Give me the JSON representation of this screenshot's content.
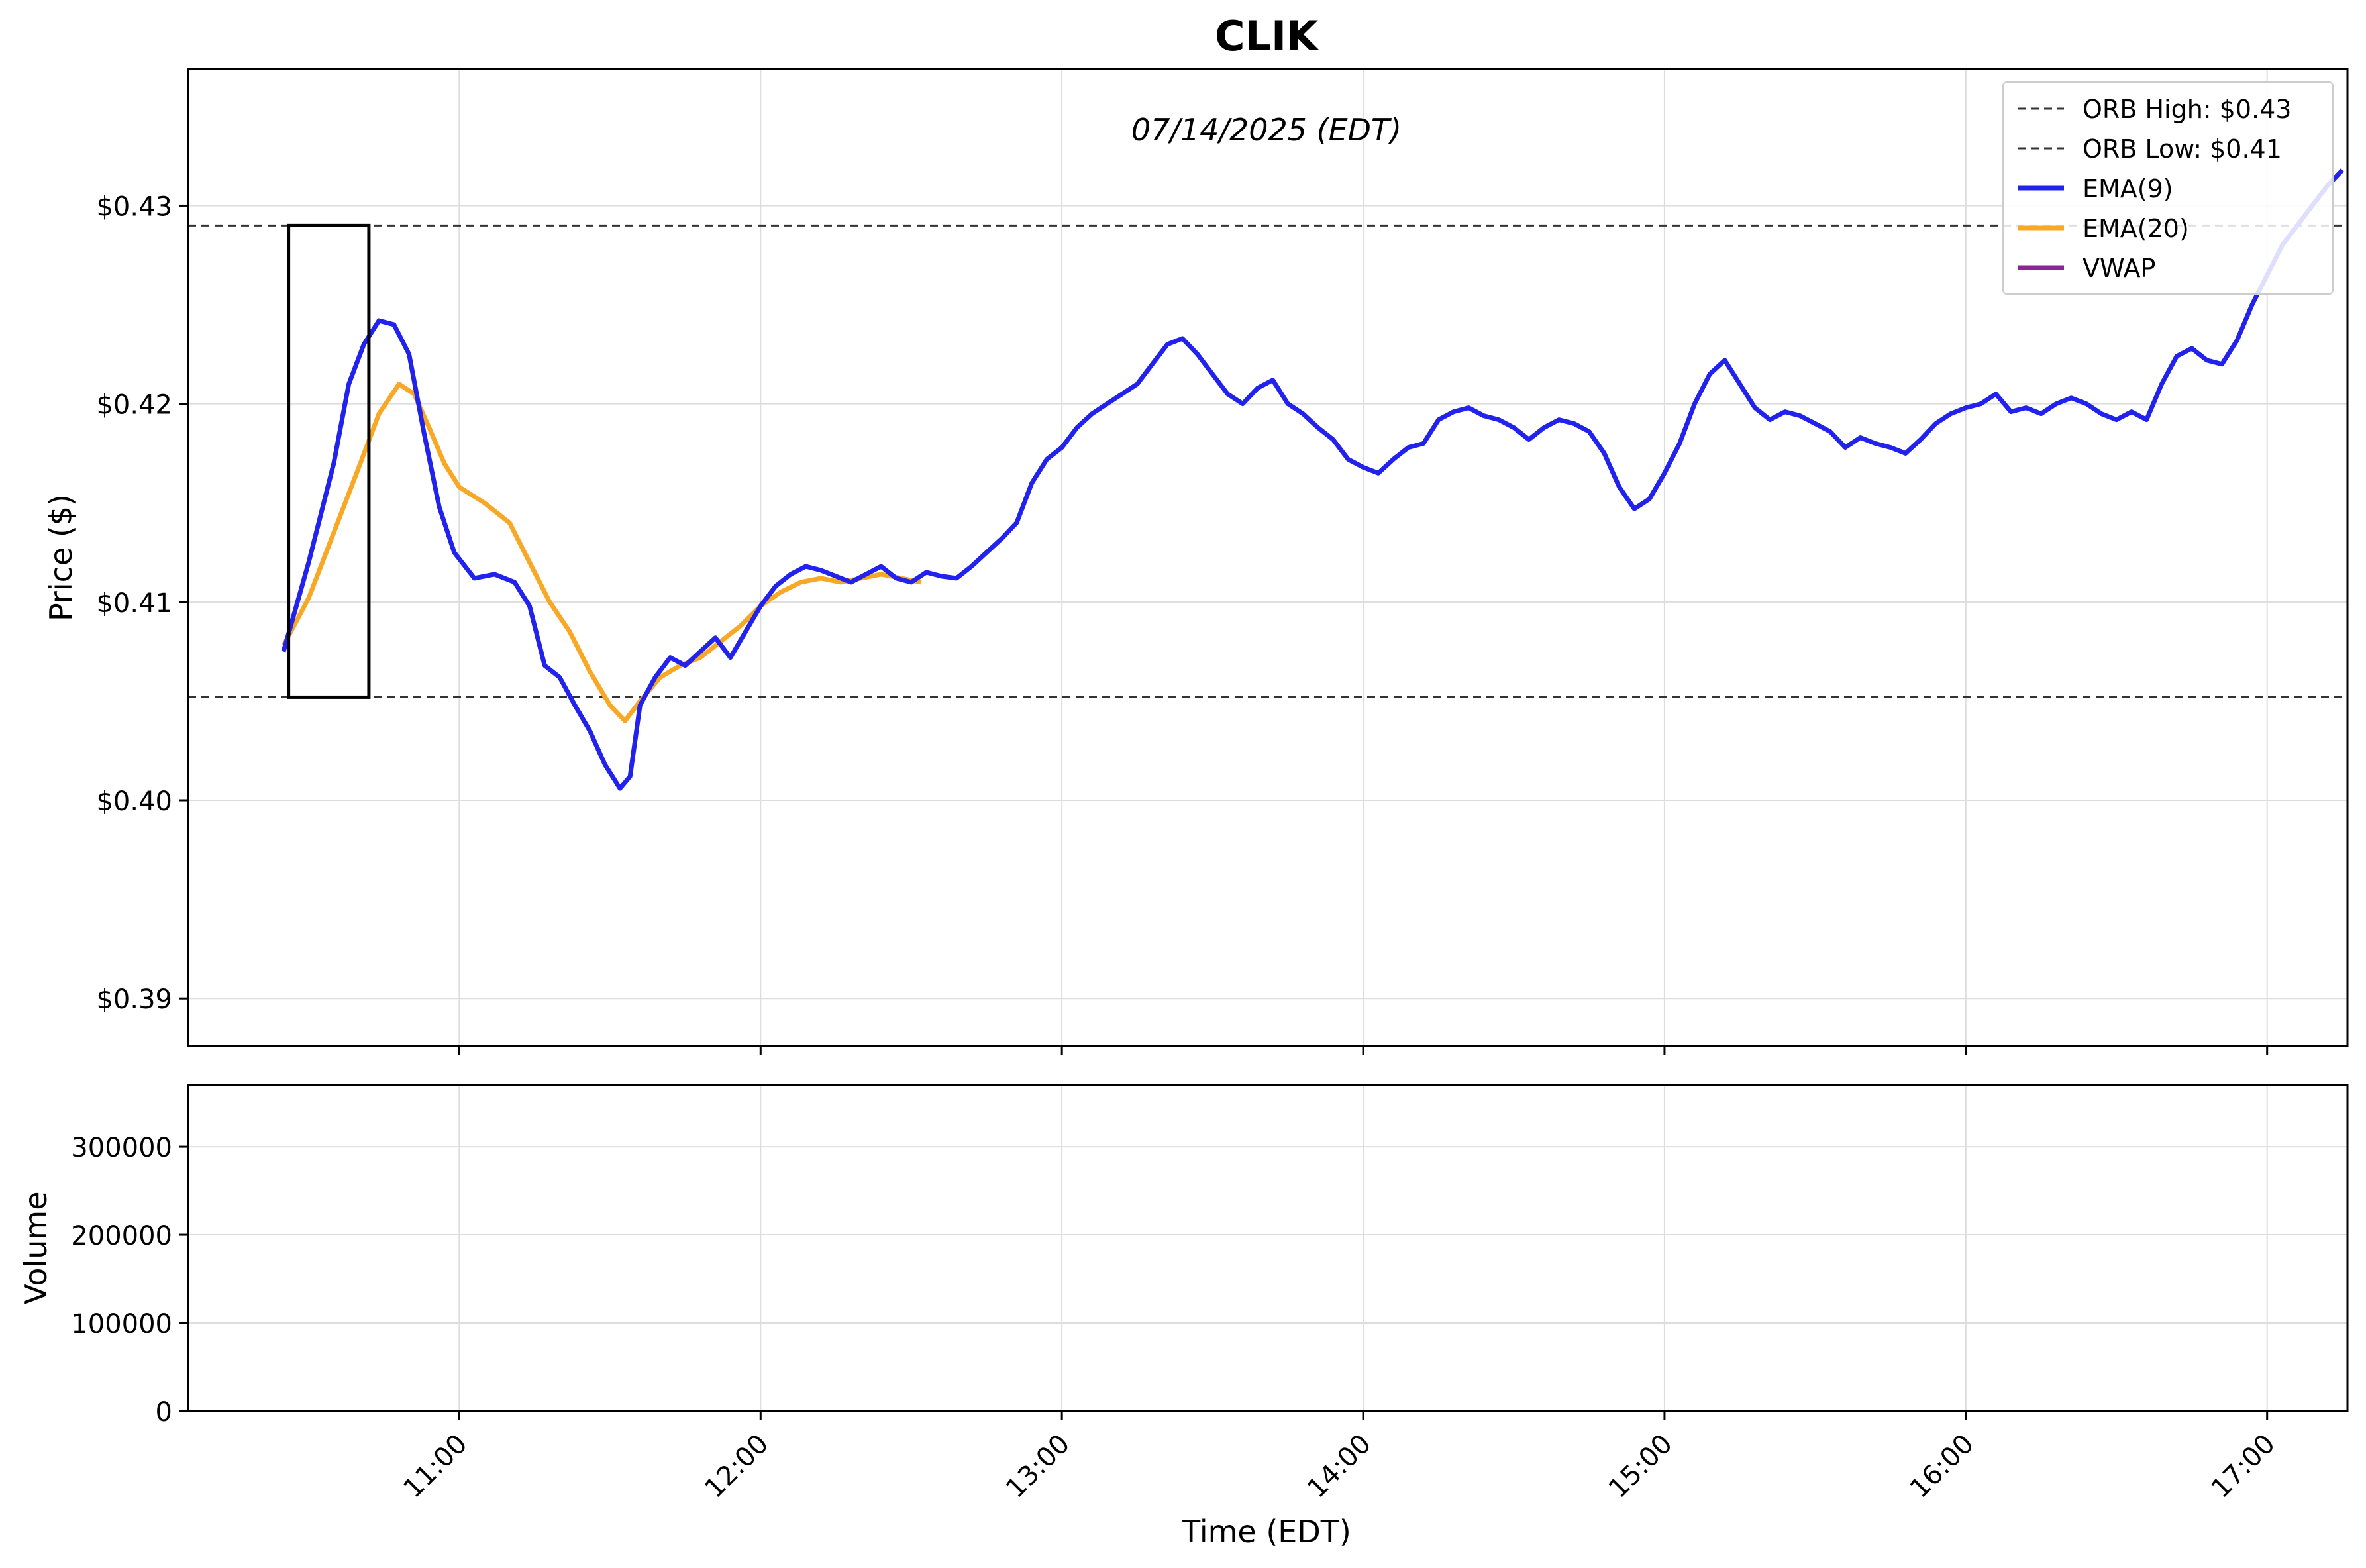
{
  "title": "CLIK",
  "date_annotation": "07/14/2025 (EDT)",
  "legend": [
    {
      "label": "ORB High: $0.43",
      "style": "dashed",
      "color": "#333333"
    },
    {
      "label": "ORB Low: $0.41",
      "style": "dashed",
      "color": "#333333"
    },
    {
      "label": "EMA(9)",
      "style": "solid",
      "color": "#2222ee"
    },
    {
      "label": "EMA(20)",
      "style": "solid",
      "color": "#f9a825"
    },
    {
      "label": "VWAP",
      "style": "solid",
      "color": "#8b2590"
    }
  ],
  "colors": {
    "up": "#007700",
    "down": "#dd0000",
    "flat": "#000000",
    "volume": "#5555ff",
    "orb_box": "#000000"
  },
  "chart_data": [
    {
      "type": "candlestick",
      "title": "CLIK",
      "annotation": "07/14/2025 (EDT)",
      "ylabel": "Price ($)",
      "ylim": [
        0.3876,
        0.4369
      ],
      "yticks": [
        0.39,
        0.4,
        0.41,
        0.42,
        0.43
      ],
      "ytick_labels": [
        "$0.39",
        "$0.40",
        "$0.41",
        "$0.42",
        "$0.43"
      ],
      "xlim": [
        "10:06",
        "17:16"
      ],
      "grid": true,
      "legend_position": "top-right",
      "orb": {
        "high": 0.429,
        "low": 0.4052,
        "start": "10:26",
        "end": "10:42"
      },
      "ema9": [
        [
          "10:25",
          0.4075
        ],
        [
          "10:30",
          0.412
        ],
        [
          "10:35",
          0.417
        ],
        [
          "10:38",
          0.421
        ],
        [
          "10:41",
          0.423
        ],
        [
          "10:44",
          0.4242
        ],
        [
          "10:47",
          0.424
        ],
        [
          "10:50",
          0.4225
        ],
        [
          "10:53",
          0.4185
        ],
        [
          "10:56",
          0.4148
        ],
        [
          "10:59",
          0.4125
        ],
        [
          "11:03",
          0.4112
        ],
        [
          "11:07",
          0.4114
        ],
        [
          "11:11",
          0.411
        ],
        [
          "11:14",
          0.4098
        ],
        [
          "11:17",
          0.4068
        ],
        [
          "11:20",
          0.4062
        ],
        [
          "11:23",
          0.4048
        ],
        [
          "11:26",
          0.4035
        ],
        [
          "11:29",
          0.4018
        ],
        [
          "11:32",
          0.4006
        ],
        [
          "11:34",
          0.4012
        ],
        [
          "11:36",
          0.4048
        ],
        [
          "11:39",
          0.4062
        ],
        [
          "11:42",
          0.4072
        ],
        [
          "11:45",
          0.4068
        ],
        [
          "11:48",
          0.4075
        ],
        [
          "11:51",
          0.4082
        ],
        [
          "11:54",
          0.4072
        ],
        [
          "11:57",
          0.4085
        ],
        [
          "12:00",
          0.4098
        ],
        [
          "12:03",
          0.4108
        ],
        [
          "12:06",
          0.4114
        ],
        [
          "12:09",
          0.4118
        ],
        [
          "12:12",
          0.4116
        ],
        [
          "12:15",
          0.4113
        ],
        [
          "12:18",
          0.411
        ],
        [
          "12:21",
          0.4114
        ],
        [
          "12:24",
          0.4118
        ],
        [
          "12:27",
          0.4112
        ],
        [
          "12:30",
          0.411
        ],
        [
          "12:33",
          0.4115
        ],
        [
          "12:36",
          0.4113
        ],
        [
          "12:39",
          0.4112
        ],
        [
          "12:42",
          0.4118
        ],
        [
          "12:45",
          0.4125
        ],
        [
          "12:48",
          0.4132
        ],
        [
          "12:51",
          0.414
        ],
        [
          "12:54",
          0.416
        ],
        [
          "12:57",
          0.4172
        ],
        [
          "13:00",
          0.4178
        ],
        [
          "13:03",
          0.4188
        ],
        [
          "13:06",
          0.4195
        ],
        [
          "13:09",
          0.42
        ],
        [
          "13:12",
          0.4205
        ],
        [
          "13:15",
          0.421
        ],
        [
          "13:18",
          0.422
        ],
        [
          "13:21",
          0.423
        ],
        [
          "13:24",
          0.4233
        ],
        [
          "13:27",
          0.4225
        ],
        [
          "13:30",
          0.4215
        ],
        [
          "13:33",
          0.4205
        ],
        [
          "13:36",
          0.42
        ],
        [
          "13:39",
          0.4208
        ],
        [
          "13:42",
          0.4212
        ],
        [
          "13:45",
          0.42
        ],
        [
          "13:48",
          0.4195
        ],
        [
          "13:51",
          0.4188
        ],
        [
          "13:54",
          0.4182
        ],
        [
          "13:57",
          0.4172
        ],
        [
          "14:00",
          0.4168
        ],
        [
          "14:03",
          0.4165
        ],
        [
          "14:06",
          0.4172
        ],
        [
          "14:09",
          0.4178
        ],
        [
          "14:12",
          0.418
        ],
        [
          "14:15",
          0.4192
        ],
        [
          "14:18",
          0.4196
        ],
        [
          "14:21",
          0.4198
        ],
        [
          "14:24",
          0.4194
        ],
        [
          "14:27",
          0.4192
        ],
        [
          "14:30",
          0.4188
        ],
        [
          "14:33",
          0.4182
        ],
        [
          "14:36",
          0.4188
        ],
        [
          "14:39",
          0.4192
        ],
        [
          "14:42",
          0.419
        ],
        [
          "14:45",
          0.4186
        ],
        [
          "14:48",
          0.4175
        ],
        [
          "14:51",
          0.4158
        ],
        [
          "14:54",
          0.4147
        ],
        [
          "14:57",
          0.4152
        ],
        [
          "15:00",
          0.4165
        ],
        [
          "15:03",
          0.418
        ],
        [
          "15:06",
          0.42
        ],
        [
          "15:09",
          0.4215
        ],
        [
          "15:12",
          0.4222
        ],
        [
          "15:15",
          0.421
        ],
        [
          "15:18",
          0.4198
        ],
        [
          "15:21",
          0.4192
        ],
        [
          "15:24",
          0.4196
        ],
        [
          "15:27",
          0.4194
        ],
        [
          "15:30",
          0.419
        ],
        [
          "15:33",
          0.4186
        ],
        [
          "15:36",
          0.4178
        ],
        [
          "15:39",
          0.4183
        ],
        [
          "15:42",
          0.418
        ],
        [
          "15:45",
          0.4178
        ],
        [
          "15:48",
          0.4175
        ],
        [
          "15:51",
          0.4182
        ],
        [
          "15:54",
          0.419
        ],
        [
          "15:57",
          0.4195
        ],
        [
          "16:00",
          0.4198
        ],
        [
          "16:03",
          0.42
        ],
        [
          "16:06",
          0.4205
        ],
        [
          "16:09",
          0.4196
        ],
        [
          "16:12",
          0.4198
        ],
        [
          "16:15",
          0.4195
        ],
        [
          "16:18",
          0.42
        ],
        [
          "16:21",
          0.4203
        ],
        [
          "16:24",
          0.42
        ],
        [
          "16:27",
          0.4195
        ],
        [
          "16:30",
          0.4192
        ],
        [
          "16:33",
          0.4196
        ],
        [
          "16:36",
          0.4192
        ],
        [
          "16:39",
          0.421
        ],
        [
          "16:42",
          0.4224
        ],
        [
          "16:45",
          0.4228
        ],
        [
          "16:48",
          0.4222
        ],
        [
          "16:51",
          0.422
        ],
        [
          "16:54",
          0.4232
        ],
        [
          "16:57",
          0.425
        ],
        [
          "17:00",
          0.4265
        ],
        [
          "17:03",
          0.428
        ],
        [
          "17:06",
          0.429
        ],
        [
          "17:09",
          0.43
        ],
        [
          "17:12",
          0.431
        ],
        [
          "17:15",
          0.4318
        ]
      ],
      "ema9_note": "",
      "ema20": [
        [
          "10:25",
          0.4078
        ],
        [
          "10:30",
          0.4102
        ],
        [
          "10:35",
          0.4135
        ],
        [
          "10:40",
          0.4168
        ],
        [
          "10:44",
          0.4195
        ],
        [
          "10:48",
          0.421
        ],
        [
          "10:51",
          0.4205
        ],
        [
          "10:54",
          0.4188
        ],
        [
          "10:57",
          0.417
        ],
        [
          "11:00",
          0.4158
        ],
        [
          "11:05",
          0.415
        ],
        [
          "11:10",
          0.414
        ],
        [
          "11:14",
          0.412
        ],
        [
          "11:18",
          0.41
        ],
        [
          "11:22",
          0.4085
        ],
        [
          "11:26",
          0.4065
        ],
        [
          "11:30",
          0.4048
        ],
        [
          "11:33",
          0.404
        ],
        [
          "11:36",
          0.405
        ],
        [
          "11:40",
          0.4062
        ],
        [
          "11:44",
          0.4068
        ],
        [
          "11:48",
          0.4072
        ],
        [
          "11:52",
          0.408
        ],
        [
          "11:56",
          0.4088
        ],
        [
          "12:00",
          0.4098
        ],
        [
          "12:04",
          0.4105
        ],
        [
          "12:08",
          0.411
        ],
        [
          "12:12",
          0.4112
        ],
        [
          "12:16",
          0.411
        ],
        [
          "12:20",
          0.4112
        ],
        [
          "12:24",
          0.4114
        ],
        [
          "12:28",
          0.4112
        ],
        [
          "12:32",
          0.411
        ]
      ],
      "ema20_note": "",
      "vwap": [],
      "candles": []
    },
    {
      "type": "bar",
      "ylabel": "Volume",
      "xlabel": "Time (EDT)",
      "ylim": [
        0,
        370000
      ],
      "yticks": [
        0,
        100000,
        200000,
        300000
      ],
      "ytick_labels": [
        "0",
        "100000",
        "200000",
        "300000"
      ],
      "xticks": [
        "11:00",
        "12:00",
        "13:00",
        "14:00",
        "15:00",
        "16:00",
        "17:00"
      ],
      "values": []
    }
  ]
}
